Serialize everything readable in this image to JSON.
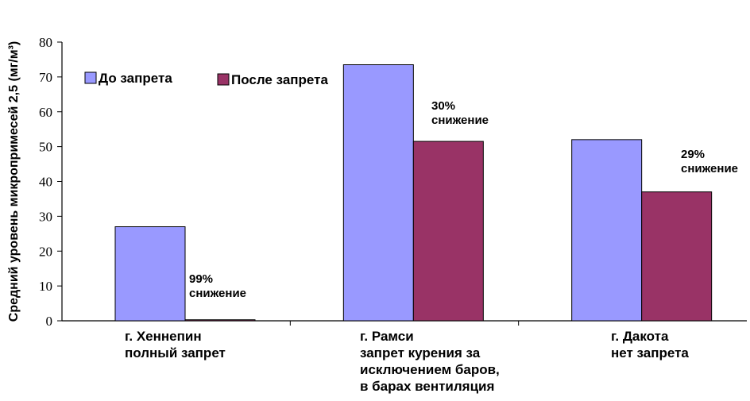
{
  "chart_data": {
    "type": "bar",
    "ylabel": "Средний уровень микропримесей 2,5 (мг/м³)",
    "ylim": [
      0,
      80
    ],
    "yticks": [
      0,
      10,
      20,
      30,
      40,
      50,
      60,
      70,
      80
    ],
    "grid": false,
    "legend_position": "top-left",
    "categories": [
      [
        "г. Хеннепин",
        "полный запрет"
      ],
      [
        "г. Рамси",
        "запрет курения за",
        "исключением баров,",
        "в барах вентиляция"
      ],
      [
        "г. Дакота",
        "нет запрета"
      ]
    ],
    "series": [
      {
        "name": "До запрета",
        "color": "#9999ff",
        "values": [
          27,
          73.5,
          52
        ]
      },
      {
        "name": "После запрета",
        "color": "#993366",
        "values": [
          0.3,
          51.5,
          37
        ]
      }
    ],
    "annotations": [
      {
        "category_index": 0,
        "lines": [
          "99%",
          "снижение"
        ]
      },
      {
        "category_index": 1,
        "lines": [
          "30%",
          "снижение"
        ]
      },
      {
        "category_index": 2,
        "lines": [
          "29%",
          "снижение"
        ]
      }
    ]
  }
}
